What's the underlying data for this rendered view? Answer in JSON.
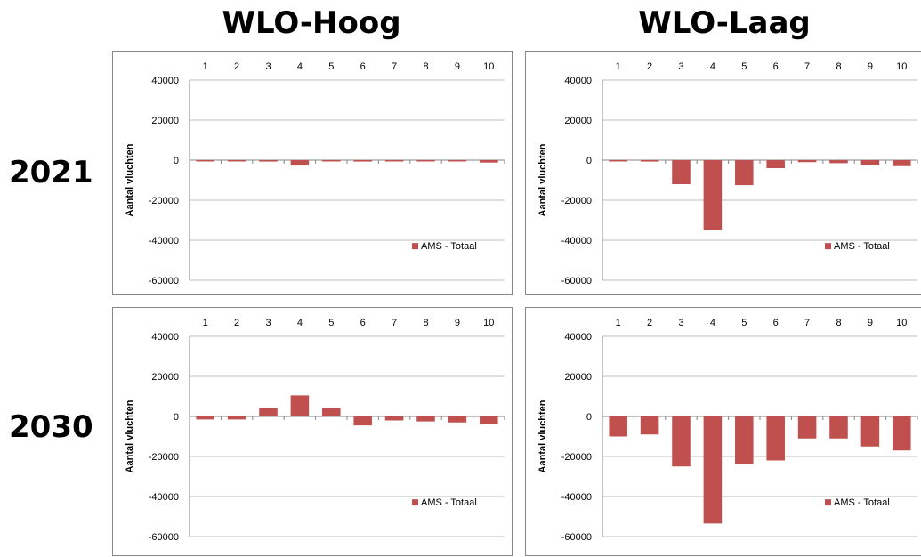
{
  "column_titles": [
    "WLO-Hoog",
    "WLO-Laag"
  ],
  "row_titles": [
    "2021",
    "2030"
  ],
  "chart_data": [
    {
      "type": "bar",
      "scenario": "WLO-Hoog",
      "year": "2021",
      "categories": [
        "1",
        "2",
        "3",
        "4",
        "5",
        "6",
        "7",
        "8",
        "9",
        "10"
      ],
      "series": [
        {
          "name": "AMS - Totaal",
          "color": "#c0504d",
          "values": [
            -500,
            -400,
            -700,
            -2700,
            -600,
            -700,
            -300,
            -400,
            -600,
            -1200
          ]
        }
      ],
      "ylabel": "Aantal vluchten",
      "ylim": [
        -60000,
        40000
      ],
      "yticks": [
        40000,
        20000,
        0,
        -20000,
        -40000,
        -60000
      ],
      "legend_position": "lower-right",
      "xaxis_position": "top",
      "grid": true
    },
    {
      "type": "bar",
      "scenario": "WLO-Laag",
      "year": "2021",
      "categories": [
        "1",
        "2",
        "3",
        "4",
        "5",
        "6",
        "7",
        "8",
        "9",
        "10"
      ],
      "series": [
        {
          "name": "AMS - Totaal",
          "color": "#c0504d",
          "values": [
            -600,
            -700,
            -12000,
            -35000,
            -12500,
            -4000,
            -1000,
            -1500,
            -2500,
            -3000
          ]
        }
      ],
      "ylabel": "Aantal vluchten",
      "ylim": [
        -60000,
        40000
      ],
      "yticks": [
        40000,
        20000,
        0,
        -20000,
        -40000,
        -60000
      ],
      "legend_position": "lower-right",
      "xaxis_position": "top",
      "grid": true
    },
    {
      "type": "bar",
      "scenario": "WLO-Hoog",
      "year": "2030",
      "categories": [
        "1",
        "2",
        "3",
        "4",
        "5",
        "6",
        "7",
        "8",
        "9",
        "10"
      ],
      "series": [
        {
          "name": "AMS - Totaal",
          "color": "#c0504d",
          "values": [
            -1500,
            -1500,
            4200,
            10500,
            4000,
            -4500,
            -2000,
            -2500,
            -3000,
            -4000
          ]
        }
      ],
      "ylabel": "Aantal vluchten",
      "ylim": [
        -60000,
        40000
      ],
      "yticks": [
        40000,
        20000,
        0,
        -20000,
        -40000,
        -60000
      ],
      "legend_position": "lower-right",
      "xaxis_position": "top",
      "grid": true
    },
    {
      "type": "bar",
      "scenario": "WLO-Laag",
      "year": "2030",
      "categories": [
        "1",
        "2",
        "3",
        "4",
        "5",
        "6",
        "7",
        "8",
        "9",
        "10"
      ],
      "series": [
        {
          "name": "AMS - Totaal",
          "color": "#c0504d",
          "values": [
            -10000,
            -9000,
            -25000,
            -53500,
            -24000,
            -22000,
            -11000,
            -11000,
            -15000,
            -17000
          ]
        }
      ],
      "ylabel": "Aantal vluchten",
      "ylim": [
        -60000,
        40000
      ],
      "yticks": [
        40000,
        20000,
        0,
        -20000,
        -40000,
        -60000
      ],
      "legend_position": "lower-right",
      "xaxis_position": "top",
      "grid": true
    }
  ]
}
